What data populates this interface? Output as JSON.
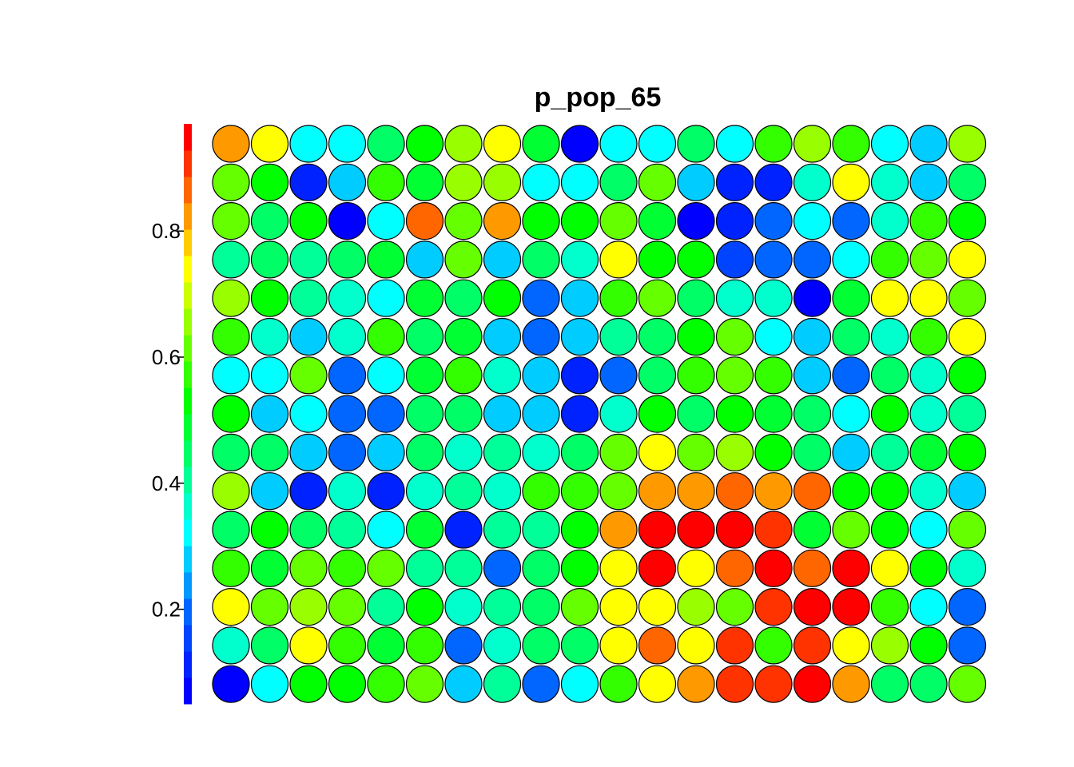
{
  "chart_data": {
    "type": "heatmap",
    "title": "p_pop_65",
    "grid": {
      "columns": 20,
      "rows": 15,
      "cell_shape": "circle"
    },
    "colorbar": {
      "position": "left",
      "range": [
        0.05,
        0.97
      ],
      "ticks": [
        0.2,
        0.4,
        0.6,
        0.8
      ],
      "tick_labels": [
        "0.2",
        "0.4",
        "0.6",
        "0.8"
      ],
      "palette": [
        "#0000ff",
        "#0022ff",
        "#0044ff",
        "#0066ff",
        "#0099ff",
        "#00ccff",
        "#00ffff",
        "#00ffcc",
        "#00ff99",
        "#00ff66",
        "#00ff33",
        "#00ff00",
        "#33ff00",
        "#66ff00",
        "#99ff00",
        "#ccff00",
        "#ffff00",
        "#ffcc00",
        "#ff9900",
        "#ff6600",
        "#ff3300",
        "#ff0000"
      ]
    },
    "values": [
      [
        0.82,
        0.72,
        0.32,
        0.32,
        0.44,
        0.53,
        0.65,
        0.76,
        0.47,
        0.05,
        0.32,
        0.32,
        0.46,
        0.32,
        0.56,
        0.65,
        0.56,
        0.32,
        0.28,
        0.65
      ],
      [
        0.6,
        0.52,
        0.13,
        0.26,
        0.56,
        0.5,
        0.65,
        0.66,
        0.32,
        0.32,
        0.43,
        0.6,
        0.26,
        0.13,
        0.11,
        0.36,
        0.76,
        0.36,
        0.27,
        0.45
      ],
      [
        0.6,
        0.46,
        0.52,
        0.05,
        0.32,
        0.88,
        0.62,
        0.82,
        0.52,
        0.55,
        0.6,
        0.47,
        0.05,
        0.13,
        0.2,
        0.32,
        0.2,
        0.36,
        0.59,
        0.55
      ],
      [
        0.42,
        0.46,
        0.42,
        0.46,
        0.5,
        0.26,
        0.62,
        0.26,
        0.46,
        0.36,
        0.72,
        0.53,
        0.53,
        0.14,
        0.2,
        0.2,
        0.32,
        0.56,
        0.6,
        0.76
      ],
      [
        0.65,
        0.53,
        0.42,
        0.36,
        0.32,
        0.5,
        0.46,
        0.55,
        0.2,
        0.26,
        0.56,
        0.6,
        0.46,
        0.36,
        0.36,
        0.05,
        0.5,
        0.76,
        0.72,
        0.6
      ],
      [
        0.56,
        0.36,
        0.26,
        0.36,
        0.56,
        0.43,
        0.5,
        0.26,
        0.18,
        0.26,
        0.42,
        0.46,
        0.52,
        0.62,
        0.32,
        0.26,
        0.46,
        0.36,
        0.56,
        0.72
      ],
      [
        0.32,
        0.32,
        0.6,
        0.2,
        0.32,
        0.5,
        0.56,
        0.36,
        0.26,
        0.13,
        0.2,
        0.46,
        0.56,
        0.6,
        0.56,
        0.26,
        0.2,
        0.46,
        0.36,
        0.53
      ],
      [
        0.55,
        0.26,
        0.32,
        0.2,
        0.2,
        0.46,
        0.46,
        0.26,
        0.26,
        0.13,
        0.36,
        0.53,
        0.46,
        0.55,
        0.5,
        0.46,
        0.32,
        0.55,
        0.36,
        0.42
      ],
      [
        0.43,
        0.46,
        0.26,
        0.2,
        0.26,
        0.46,
        0.36,
        0.42,
        0.36,
        0.46,
        0.6,
        0.76,
        0.62,
        0.66,
        0.52,
        0.46,
        0.26,
        0.42,
        0.5,
        0.52
      ],
      [
        0.65,
        0.26,
        0.13,
        0.36,
        0.13,
        0.36,
        0.42,
        0.36,
        0.56,
        0.56,
        0.62,
        0.82,
        0.82,
        0.88,
        0.82,
        0.88,
        0.55,
        0.52,
        0.36,
        0.26
      ],
      [
        0.46,
        0.53,
        0.46,
        0.42,
        0.32,
        0.5,
        0.13,
        0.42,
        0.42,
        0.55,
        0.82,
        0.97,
        0.97,
        0.97,
        0.91,
        0.5,
        0.6,
        0.55,
        0.32,
        0.6
      ],
      [
        0.56,
        0.5,
        0.6,
        0.56,
        0.6,
        0.42,
        0.42,
        0.2,
        0.46,
        0.55,
        0.76,
        0.97,
        0.76,
        0.88,
        0.97,
        0.88,
        0.97,
        0.76,
        0.52,
        0.36
      ],
      [
        0.72,
        0.62,
        0.65,
        0.62,
        0.42,
        0.53,
        0.36,
        0.42,
        0.46,
        0.6,
        0.76,
        0.72,
        0.65,
        0.6,
        0.91,
        0.97,
        0.97,
        0.59,
        0.32,
        0.2
      ],
      [
        0.36,
        0.43,
        0.76,
        0.59,
        0.5,
        0.56,
        0.2,
        0.36,
        0.46,
        0.43,
        0.72,
        0.88,
        0.72,
        0.91,
        0.56,
        0.91,
        0.76,
        0.65,
        0.55,
        0.2
      ],
      [
        0.05,
        0.32,
        0.55,
        0.55,
        0.59,
        0.62,
        0.26,
        0.42,
        0.2,
        0.32,
        0.59,
        0.76,
        0.82,
        0.91,
        0.91,
        0.97,
        0.82,
        0.46,
        0.46,
        0.62
      ]
    ]
  }
}
